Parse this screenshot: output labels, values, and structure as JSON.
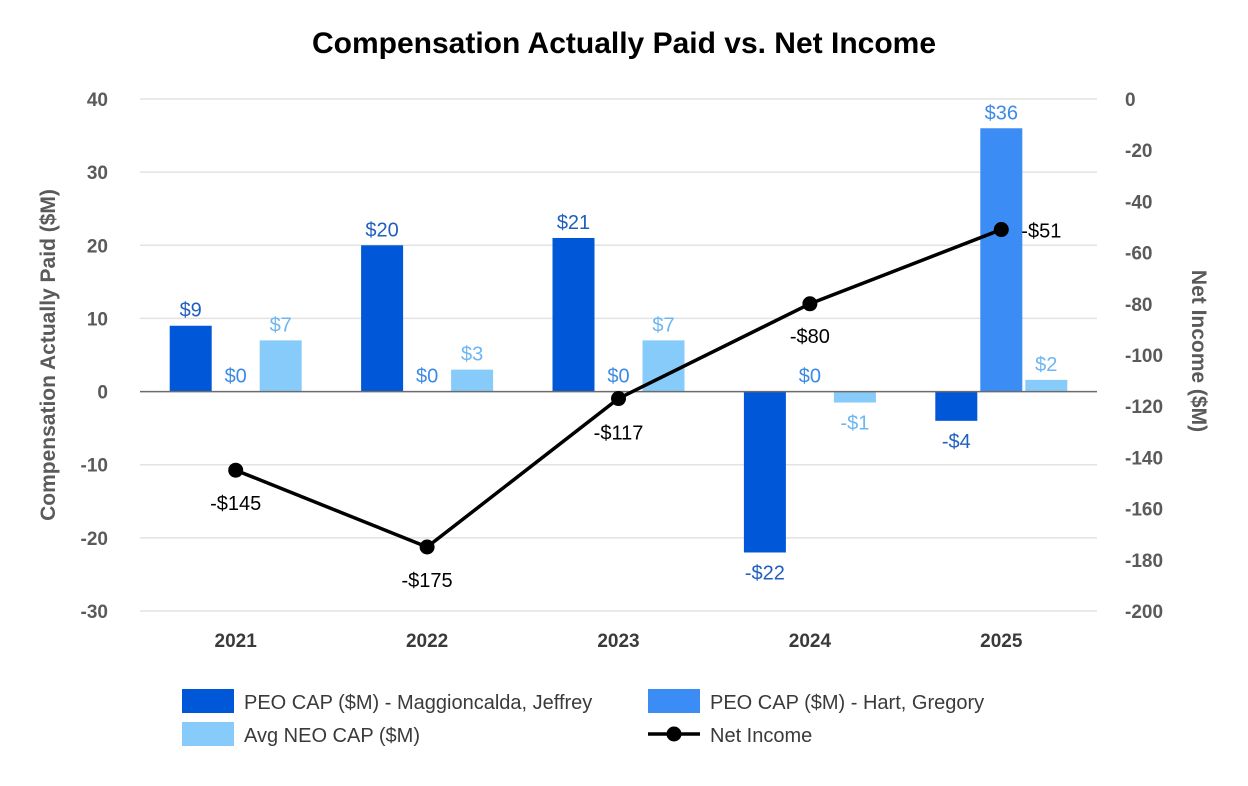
{
  "chart_data": {
    "type": "bar",
    "title": "Compensation Actually Paid vs. Net Income",
    "categories": [
      "2021",
      "2022",
      "2023",
      "2024",
      "2025"
    ],
    "ylabel": "Compensation Actually Paid ($M)",
    "y2label": "Net Income ($M)",
    "ylim": [
      -30,
      40
    ],
    "y2lim": [
      -200,
      0
    ],
    "yticks": [
      40,
      30,
      20,
      10,
      0,
      -10,
      -20,
      -30
    ],
    "y2ticks": [
      0,
      -20,
      -40,
      -60,
      -80,
      -100,
      -120,
      -140,
      -160,
      -180,
      -200
    ],
    "grid": true,
    "legend_position": "bottom",
    "series": [
      {
        "name": "PEO CAP ($M) - Maggioncalda, Jeffrey",
        "type": "bar",
        "axis": "left",
        "color": "#0057d8",
        "label_color": "#1f5fbf",
        "values": [
          9,
          20,
          21,
          -22,
          -4
        ],
        "labels": [
          "$9",
          "$20",
          "$21",
          "-$22",
          "-$4"
        ]
      },
      {
        "name": "PEO CAP ($M) - Hart, Gregory",
        "type": "bar",
        "axis": "left",
        "color": "#3b8df5",
        "label_color": "#3d8ae6",
        "values": [
          0,
          0,
          0,
          0,
          36
        ],
        "labels": [
          "$0",
          "$0",
          "$0",
          "$0",
          "$36"
        ]
      },
      {
        "name": "Avg NEO CAP ($M)",
        "type": "bar",
        "axis": "left",
        "color": "#87cbfb",
        "label_color": "#6cb6f2",
        "values": [
          7,
          3,
          7,
          -1.5,
          1.6
        ],
        "labels": [
          "$7",
          "$3",
          "$7",
          "-$1",
          "$2"
        ]
      },
      {
        "name": "Net Income",
        "type": "line",
        "axis": "right",
        "color": "#000000",
        "values": [
          -145,
          -175,
          -117,
          -80,
          -51
        ],
        "labels": [
          "-$145",
          "-$175",
          "-$117",
          "-$80",
          "-$51"
        ]
      }
    ]
  }
}
